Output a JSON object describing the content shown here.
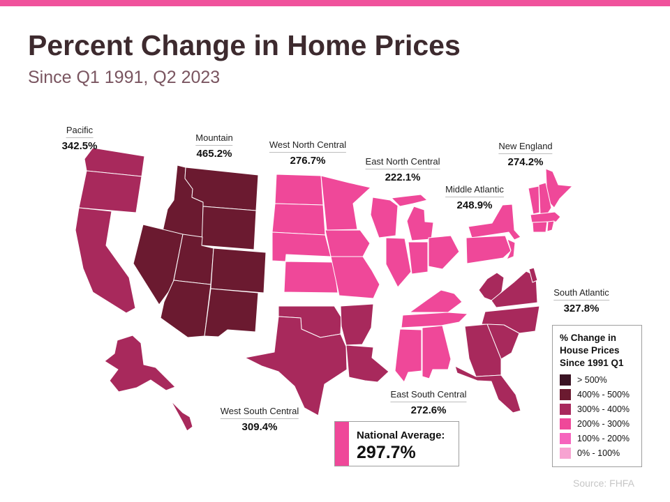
{
  "header": {
    "title": "Percent Change in Home Prices",
    "subtitle": "Since Q1 1991, Q2 2023"
  },
  "colors": {
    "accent_bar": "#f0529c",
    "bin_over_500": "#3a1323",
    "bin_400_500": "#6b1a30",
    "bin_300_400": "#a8295c",
    "bin_200_300": "#ef4899",
    "bin_100_200": "#f664bd",
    "bin_0_100": "#f7a3d1"
  },
  "regions": [
    {
      "name": "Pacific",
      "value": "342.5%",
      "bin": "300 - 400"
    },
    {
      "name": "Mountain",
      "value": "465.2%",
      "bin": "400 - 500"
    },
    {
      "name": "West North Central",
      "value": "276.7%",
      "bin": "200 - 300"
    },
    {
      "name": "East North Central",
      "value": "222.1%",
      "bin": "200 - 300"
    },
    {
      "name": "Middle Atlantic",
      "value": "248.9%",
      "bin": "200 - 300"
    },
    {
      "name": "New England",
      "value": "274.2%",
      "bin": "200 - 300"
    },
    {
      "name": "South Atlantic",
      "value": "327.8%",
      "bin": "300 - 400"
    },
    {
      "name": "East South Central",
      "value": "272.6%",
      "bin": "200 - 300"
    },
    {
      "name": "West South Central",
      "value": "309.4%",
      "bin": "300 - 400"
    }
  ],
  "national": {
    "label": "National Average:",
    "value": "297.7%"
  },
  "legend": {
    "title": "% Change in House Prices Since 1991 Q1",
    "items": [
      "> 500%",
      "400% - 500%",
      "300% - 400%",
      "200% - 300%",
      "100% - 200%",
      "0% - 100%"
    ]
  },
  "source": "Source: FHFA"
}
